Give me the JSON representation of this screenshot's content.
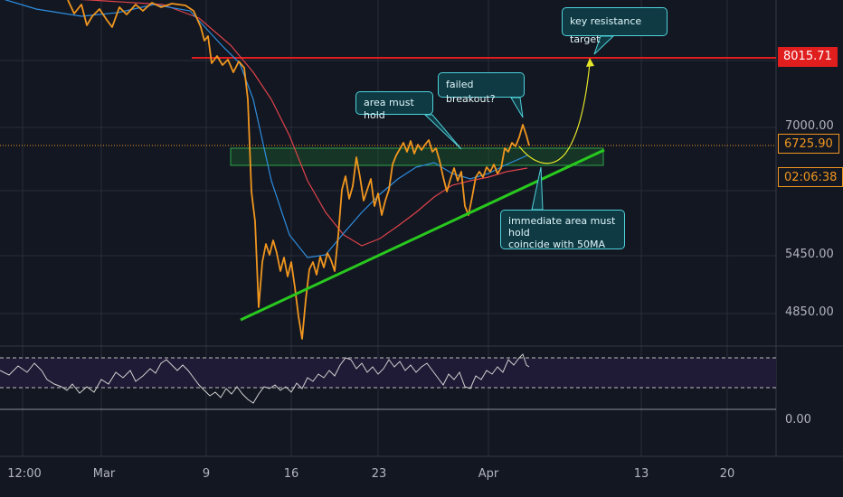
{
  "y_axis": {
    "ticks": [
      "7000.00",
      "5450.00",
      "4850.00"
    ],
    "rsi_tick": "0.00"
  },
  "x_axis": {
    "ticks": [
      "12:00",
      "Mar",
      "9",
      "16",
      "23",
      "Apr",
      "13",
      "20"
    ]
  },
  "price_tags": {
    "resistance": "8015.71",
    "last_price": "6725.90",
    "countdown": "02:06:38"
  },
  "annotations": {
    "key_target": "key resistance target",
    "failed_breakout": "failed breakout?",
    "area_hold": "area must hold",
    "immediate_line1": "immediate area must hold",
    "immediate_line2": "coincide with 50MA"
  },
  "colors": {
    "background": "#131722",
    "price": "#f0961e",
    "ma_fast": "#2e8ee0",
    "ma_slow": "#e0434a",
    "resistance": "#e01e1e",
    "support": "#28c81e",
    "zone": "#1e6e2d",
    "projection": "#e6e628",
    "rsi": "#d0d0d0",
    "rsi_band": "#1f1a35"
  },
  "chart_data": {
    "type": "line",
    "title": "",
    "xlabel": "",
    "ylabel": "",
    "ylim": [
      4700,
      8300
    ],
    "x": [
      "Mar 9",
      "Mar 12",
      "Mar 13",
      "Mar 16",
      "Mar 19",
      "Mar 23",
      "Mar 26",
      "Mar 30",
      "Apr 1",
      "Apr 2",
      "Apr 4"
    ],
    "series": [
      {
        "values": [
          8000,
          7000,
          5000,
          4700,
          5700,
          6500,
          6700,
          5950,
          6300,
          6600,
          6725.9
        ]
      }
    ],
    "levels": {
      "resistance": 8015.71,
      "last_price": 6725.9,
      "support_zone": [
        6450,
        6650
      ]
    },
    "rsi": {
      "overbought": 70,
      "oversold": 30
    }
  }
}
